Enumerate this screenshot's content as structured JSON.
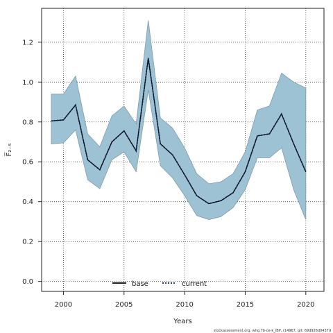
{
  "chart_data": {
    "type": "line",
    "xlabel": "Years",
    "ylabel": "F̅₂₋₅",
    "xlim": [
      1998.2,
      2021.5
    ],
    "ylim": [
      -0.05,
      1.37
    ],
    "x_ticks": [
      2000,
      2005,
      2010,
      2015,
      2020
    ],
    "y_ticks": [
      0.0,
      0.2,
      0.4,
      0.6,
      0.8,
      1.0,
      1.2
    ],
    "y_tick_labels": [
      "0.0",
      "0.2",
      "0.4",
      "0.6",
      "0.8",
      "1.0",
      "1.2"
    ],
    "grid": true,
    "legend_position": "bottom-center",
    "x": [
      1999,
      2000,
      2001,
      2002,
      2003,
      2004,
      2005,
      2006,
      2007,
      2008,
      2009,
      2010,
      2011,
      2012,
      2013,
      2014,
      2015,
      2016,
      2017,
      2018,
      2019,
      2020
    ],
    "band": {
      "upper": [
        0.94,
        0.94,
        1.03,
        0.74,
        0.675,
        0.83,
        0.88,
        0.79,
        1.31,
        0.82,
        0.77,
        0.67,
        0.54,
        0.49,
        0.5,
        0.54,
        0.65,
        0.86,
        0.88,
        1.045,
        1.0,
        0.97
      ],
      "lower": [
        0.69,
        0.695,
        0.76,
        0.51,
        0.465,
        0.61,
        0.65,
        0.55,
        0.96,
        0.58,
        0.52,
        0.43,
        0.33,
        0.31,
        0.325,
        0.37,
        0.46,
        0.62,
        0.62,
        0.67,
        0.46,
        0.31
      ]
    },
    "series": [
      {
        "name": "base",
        "values": [
          0.805,
          0.81,
          0.885,
          0.61,
          0.56,
          0.7,
          0.755,
          0.655,
          1.12,
          0.69,
          0.635,
          0.535,
          0.43,
          0.39,
          0.405,
          0.445,
          0.55,
          0.73,
          0.74,
          0.84,
          0.69,
          0.55
        ],
        "style": "solid",
        "color": "#000000"
      },
      {
        "name": "current",
        "values": [
          0.805,
          0.81,
          0.885,
          0.61,
          0.56,
          0.7,
          0.755,
          0.655,
          1.12,
          0.69,
          0.635,
          0.535,
          0.43,
          0.39,
          0.405,
          0.445,
          0.55,
          0.73,
          0.74,
          0.84,
          0.69,
          0.55
        ],
        "style": "dotted",
        "color": "#0a1f44"
      }
    ],
    "colors": {
      "band_fill": "#9dc2d4",
      "band_edge": "#7f9aa8",
      "grid": "#333333"
    },
    "footnote": "stockassessment.org, whg.7b-ce-k_IBP, r14967, git: 69d926d0437d"
  }
}
